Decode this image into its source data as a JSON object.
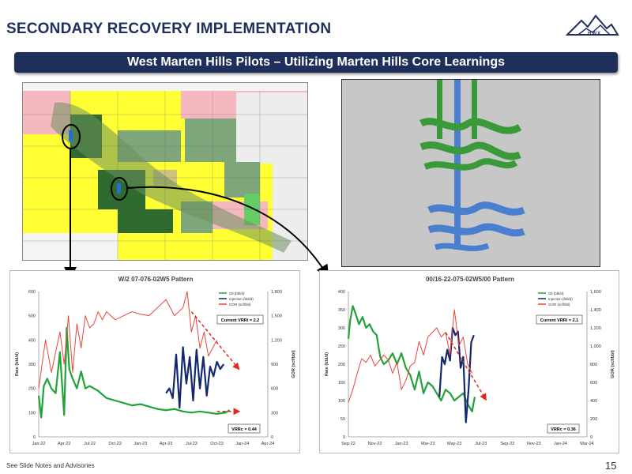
{
  "slide": {
    "title": "SECONDARY RECOVERY IMPLEMENTATION",
    "banner": "West Marten Hills Pilots – Utilizing Marten Hills Core Learnings",
    "logo_text": "HWX",
    "footer_note": "See Slide Notes and Advisories",
    "page_number": "15",
    "colors": {
      "navy": "#1f2f5c",
      "oil": "#22a33a",
      "injection": "#14286e",
      "gor": "#e8463c",
      "arrow": "#e02a1f"
    }
  },
  "map": {
    "icons": [
      "map-icon"
    ]
  },
  "model": {
    "icons": [
      "3d-well-model-icon"
    ]
  },
  "chart_data": [
    {
      "type": "line",
      "title": "W/2 07-076-02W5 Pattern",
      "xlabel": "",
      "ylabel": "Rate (bbl/d)",
      "y2label": "GOR (scf/bbl)",
      "x_ticks": [
        "Jan-22",
        "Apr-22",
        "Jul-22",
        "Oct-22",
        "Jan-23",
        "Apr-23",
        "Jul-23",
        "Oct-23",
        "Jan-24",
        "Apr-24"
      ],
      "y_ticks": [
        "0",
        "100",
        "200",
        "300",
        "400",
        "500",
        "600"
      ],
      "y2_ticks": [
        "0",
        "300",
        "600",
        "900",
        "1,200",
        "1,500",
        "1,800"
      ],
      "ylim": [
        0,
        600
      ],
      "y2lim": [
        0,
        1800
      ],
      "legend": [
        "Oil (bbl/d)",
        "Injection (bbl/d)",
        "GOR (scf/bbl)"
      ],
      "legend_position": "top-right",
      "annotations": [
        "Current VRRi = 2.2",
        "VRRc = 0.44"
      ],
      "series": [
        {
          "name": "Oil (bbl/d)",
          "axis": "left",
          "x": [
            0,
            0.3,
            0.6,
            1,
            1.5,
            2,
            2.5,
            3,
            3.3,
            3.6,
            4,
            4.5,
            5,
            5.5,
            6,
            7,
            8,
            9,
            10,
            11,
            12,
            13,
            14,
            15,
            16,
            17,
            18,
            19,
            20,
            21,
            22,
            22.5
          ],
          "values": [
            170,
            80,
            210,
            240,
            200,
            180,
            350,
            90,
            450,
            280,
            240,
            200,
            270,
            200,
            210,
            190,
            160,
            150,
            140,
            130,
            135,
            125,
            115,
            110,
            115,
            105,
            100,
            105,
            100,
            95,
            100,
            110
          ]
        },
        {
          "name": "Injection (bbl/d)",
          "axis": "left",
          "x": [
            15,
            15.4,
            15.8,
            16.2,
            16.6,
            17,
            17.4,
            17.8,
            18.2,
            18.6,
            19,
            19.4,
            19.8,
            20.2,
            20.6,
            21,
            21.4,
            21.8
          ],
          "values": [
            180,
            200,
            160,
            340,
            120,
            370,
            220,
            330,
            150,
            360,
            200,
            330,
            170,
            290,
            250,
            310,
            280,
            300
          ]
        },
        {
          "name": "GOR (scf/bbl)",
          "axis": "right",
          "x": [
            0,
            0.8,
            1.5,
            2,
            2.5,
            3,
            3.5,
            4,
            4.5,
            5,
            5.5,
            6,
            6.5,
            7,
            7.5,
            8,
            8.5,
            9,
            10,
            11,
            12,
            13,
            14,
            15,
            16,
            17,
            17.5,
            18,
            18.5,
            19,
            19.5,
            20,
            20.5,
            21
          ],
          "values": [
            600,
            1200,
            800,
            1050,
            1300,
            900,
            1500,
            800,
            1400,
            1100,
            1500,
            1350,
            1400,
            1550,
            1450,
            1550,
            1500,
            1450,
            1500,
            1550,
            1520,
            1500,
            1600,
            1700,
            1500,
            1600,
            1800,
            1300,
            1500,
            1100,
            1300,
            1000,
            1100,
            1200
          ]
        }
      ],
      "trend_annotations": [
        {
          "series": "GOR (scf/bbl)",
          "axis": "right",
          "from": [
            18,
            1550
          ],
          "to": [
            23.5,
            850
          ]
        },
        {
          "series": "Oil (bbl/d)",
          "axis": "left",
          "from": [
            21,
            105
          ],
          "to": [
            23.5,
            105
          ]
        }
      ]
    },
    {
      "type": "line",
      "title": "00/16-22-075-02W5/00 Pattern",
      "xlabel": "",
      "ylabel": "Rate (bbl/d)",
      "y2label": "GOR (scf/bbl)",
      "x_ticks": [
        "Sep-22",
        "Nov-22",
        "Jan-23",
        "Mar-23",
        "May-23",
        "Jul-23",
        "Sep-23",
        "Nov-23",
        "Jan-24",
        "Mar-24"
      ],
      "y_ticks": [
        "0",
        "50",
        "100",
        "150",
        "200",
        "250",
        "300",
        "350",
        "400"
      ],
      "y2_ticks": [
        "0",
        "200",
        "400",
        "600",
        "800",
        "1,000",
        "1,200",
        "1,400",
        "1,600"
      ],
      "ylim": [
        0,
        400
      ],
      "y2lim": [
        0,
        1600
      ],
      "legend": [
        "Oil (bbl/d)",
        "Injection (bbl/d)",
        "GOR (scf/bbl)"
      ],
      "legend_position": "top-right",
      "annotations": [
        "Current VRRi = 2.1",
        "VRRc = 0.36"
      ],
      "series": [
        {
          "name": "Oil (bbl/d)",
          "axis": "left",
          "x": [
            0,
            0.2,
            0.5,
            0.8,
            1.2,
            1.6,
            2,
            2.4,
            2.8,
            3.2,
            3.6,
            4,
            4.5,
            5,
            5.5,
            6,
            6.5,
            7,
            7.5,
            8,
            8.5,
            9,
            9.5,
            10,
            10.5,
            11,
            11.5,
            12,
            12.5,
            13,
            13.5,
            14,
            14.3
          ],
          "values": [
            270,
            320,
            360,
            340,
            310,
            330,
            300,
            310,
            290,
            280,
            220,
            200,
            210,
            230,
            200,
            230,
            190,
            170,
            130,
            180,
            120,
            150,
            140,
            120,
            100,
            130,
            120,
            100,
            110,
            120,
            90,
            70,
            110
          ]
        },
        {
          "name": "Injection (bbl/d)",
          "axis": "left",
          "x": [
            10.3,
            10.6,
            10.9,
            11.2,
            11.5,
            11.8,
            12.1,
            12.4,
            12.7,
            13,
            13.3,
            13.6,
            13.9,
            14.2
          ],
          "values": [
            110,
            220,
            200,
            240,
            210,
            300,
            280,
            290,
            190,
            220,
            40,
            130,
            260,
            280
          ]
        },
        {
          "name": "GOR (scf/bbl)",
          "axis": "right",
          "x": [
            0,
            0.5,
            1,
            1.5,
            2,
            2.5,
            3,
            3.5,
            4,
            4.5,
            5,
            5.5,
            6,
            6.5,
            7,
            7.5,
            8,
            8.5,
            9,
            9.5,
            10,
            10.5,
            11,
            11.5,
            12,
            12.5,
            13,
            13.5,
            14
          ],
          "values": [
            380,
            520,
            700,
            860,
            820,
            900,
            780,
            840,
            900,
            850,
            700,
            820,
            520,
            620,
            780,
            820,
            1050,
            900,
            1100,
            1150,
            1200,
            1100,
            1150,
            900,
            1400,
            1000,
            1100,
            800,
            700
          ]
        }
      ],
      "trend_annotations": [
        {
          "series": "GOR (scf/bbl)",
          "axis": "right",
          "from": [
            11,
            1150
          ],
          "to": [
            15.5,
            420
          ]
        }
      ]
    }
  ]
}
